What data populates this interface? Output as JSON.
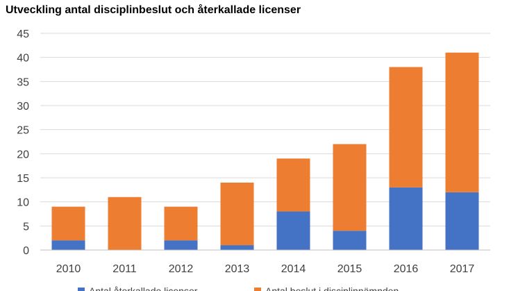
{
  "chart_data": {
    "type": "bar",
    "stacked": true,
    "title": "Utveckling antal disciplinbeslut och återkallade licenser",
    "xlabel": "",
    "ylabel": "",
    "categories": [
      "2010",
      "2011",
      "2012",
      "2013",
      "2014",
      "2015",
      "2016",
      "2017"
    ],
    "series": [
      {
        "name": "Antal återkallade licenser",
        "color": "#4472C4",
        "values": [
          2,
          0,
          2,
          1,
          8,
          4,
          13,
          12
        ]
      },
      {
        "name": "Antal beslut i disciplinnämnden",
        "color": "#ED7D31",
        "values": [
          7,
          11,
          7,
          13,
          11,
          18,
          25,
          29
        ]
      }
    ],
    "ylim": [
      0,
      45
    ],
    "yticks": [
      0,
      5,
      10,
      15,
      20,
      25,
      30,
      35,
      40,
      45
    ],
    "grid": true,
    "legend": "bottom"
  }
}
